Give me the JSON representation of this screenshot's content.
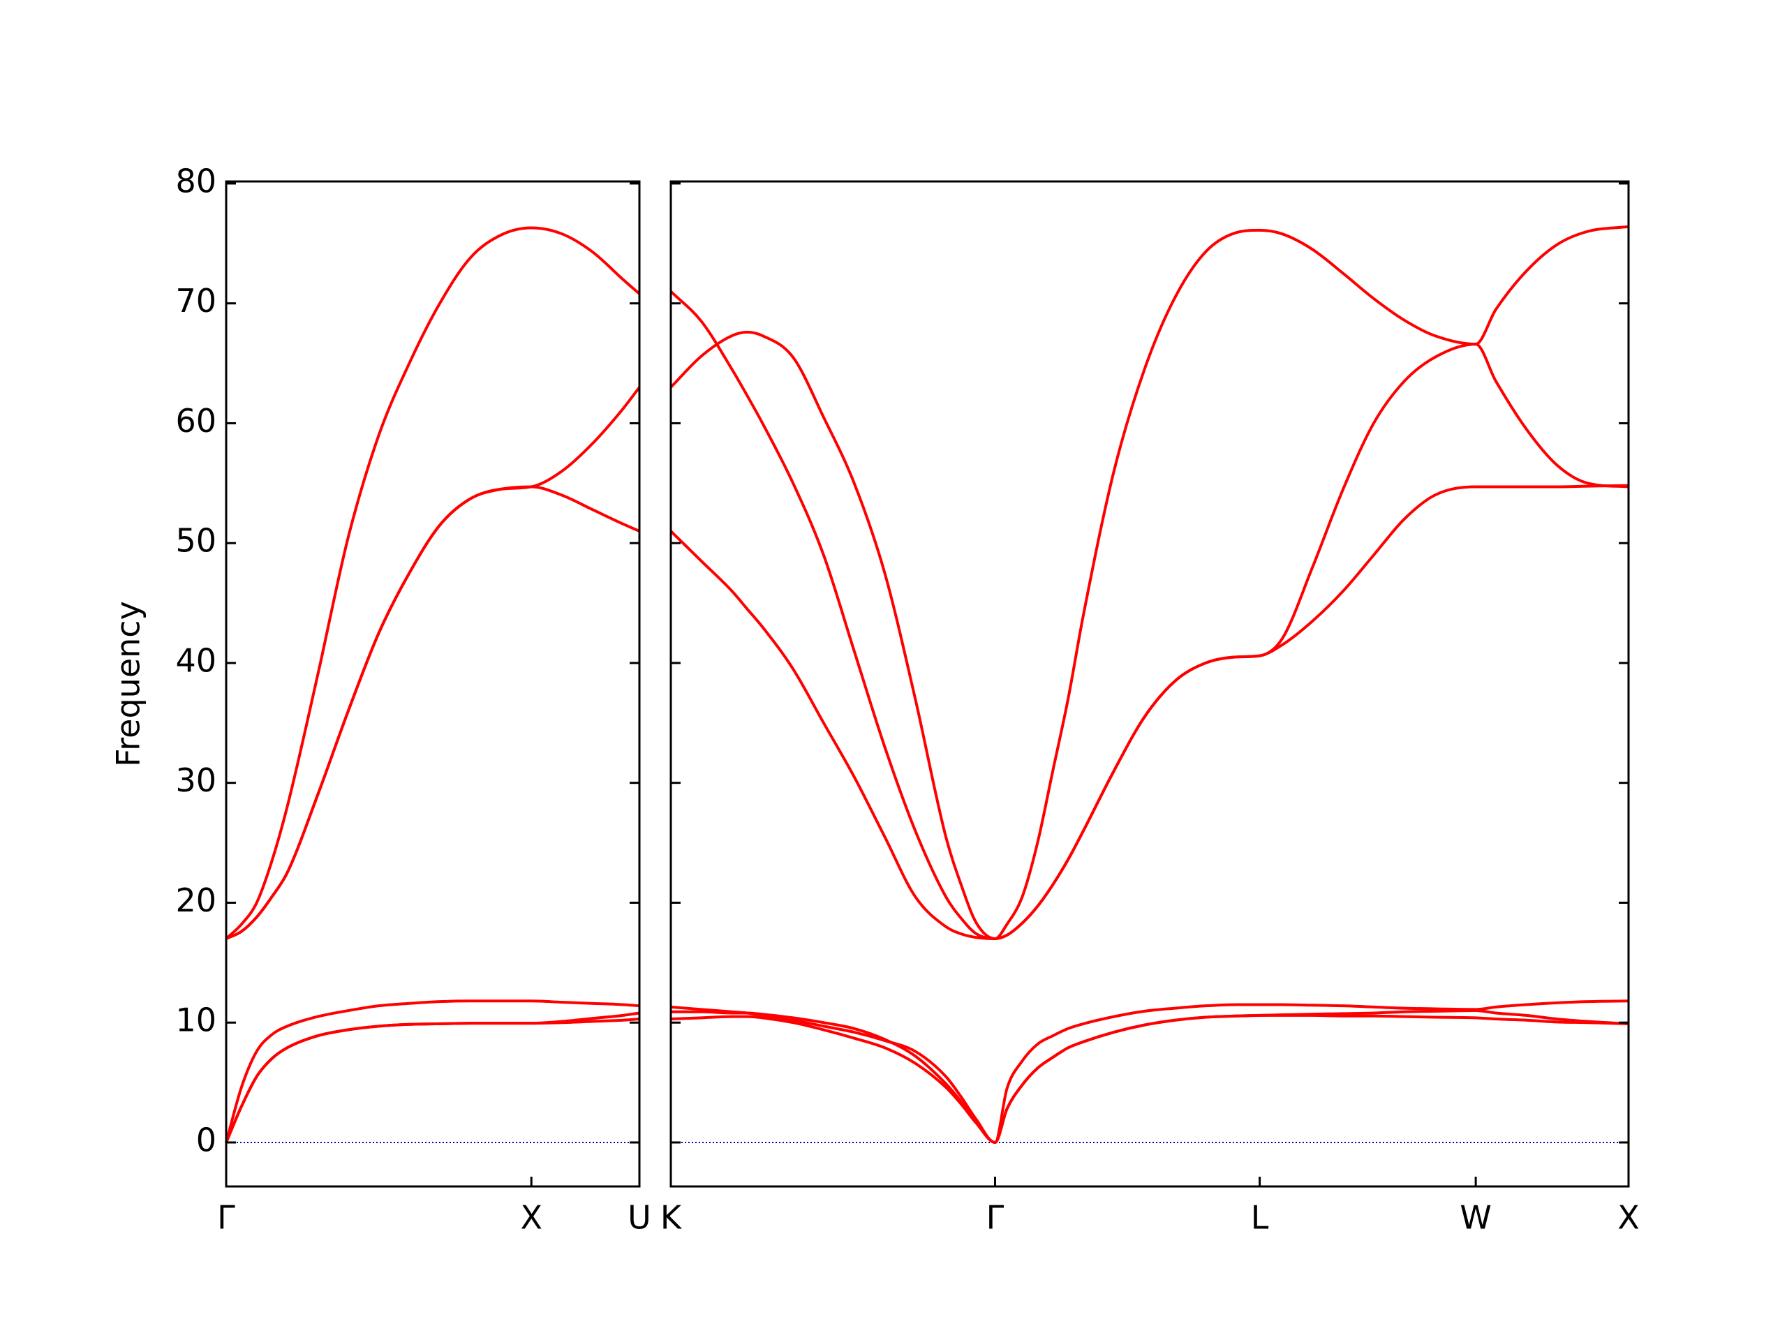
{
  "chart_data": [
    {
      "type": "line",
      "ylabel": "Frequency",
      "x": [
        0,
        0.05,
        0.1,
        0.15,
        0.2,
        0.3,
        0.4,
        0.5,
        0.6,
        0.7,
        0.8,
        0.9,
        1,
        1.1,
        1.2,
        1.3,
        1.354
      ],
      "series": [
        {
          "color": "#ff0000",
          "values": [
            17,
            18.2,
            20,
            23.5,
            28,
            39,
            50.5,
            59,
            65,
            70,
            73.8,
            75.7,
            76.3,
            75.8,
            74.3,
            72,
            70.8
          ]
        },
        {
          "color": "#ff0000",
          "values": [
            17,
            17.6,
            18.8,
            20.5,
            22.5,
            29,
            36,
            42.5,
            47.5,
            51.5,
            53.7,
            54.5,
            54.7,
            56,
            58.3,
            61.2,
            63
          ]
        },
        {
          "color": "#ff0000",
          "values": [
            17,
            17.6,
            18.8,
            20.5,
            22.5,
            29,
            36,
            42.5,
            47.5,
            51.5,
            53.7,
            54.5,
            54.7,
            54,
            52.8,
            51.6,
            51
          ]
        },
        {
          "color": "#ff0000",
          "values": [
            0,
            4.6,
            7.6,
            9,
            9.7,
            10.5,
            11,
            11.4,
            11.6,
            11.75,
            11.8,
            11.8,
            11.8,
            11.7,
            11.6,
            11.5,
            11.4
          ]
        },
        {
          "color": "#ff0000",
          "values": [
            0,
            3,
            5.5,
            7,
            7.9,
            8.9,
            9.4,
            9.7,
            9.85,
            9.9,
            9.95,
            9.95,
            9.95,
            10.1,
            10.35,
            10.6,
            10.8
          ]
        },
        {
          "color": "#ff0000",
          "values": [
            0,
            3,
            5.5,
            7,
            7.9,
            8.9,
            9.4,
            9.7,
            9.85,
            9.9,
            9.95,
            9.95,
            9.95,
            10,
            10.1,
            10.2,
            10.3
          ]
        }
      ],
      "xlim": [
        0,
        1.354
      ],
      "xticks": [
        {
          "value": 0,
          "label": "Γ"
        },
        {
          "value": 1,
          "label": "X"
        },
        {
          "value": 1.354,
          "label": "U"
        }
      ],
      "ylim": [
        -3.67,
        80.17
      ],
      "yticks": [
        0,
        10,
        20,
        30,
        40,
        50,
        60,
        70,
        80
      ],
      "hlines": [
        0
      ],
      "hline_color": "#0000aa"
    },
    {
      "type": "line",
      "x": [
        0,
        0.1,
        0.2,
        0.25,
        0.3,
        0.4,
        0.5,
        0.6,
        0.7,
        0.8,
        0.9,
        0.95,
        1.0,
        1.061,
        1.1,
        1.15,
        1.2,
        1.25,
        1.3,
        1.35,
        1.45,
        1.55,
        1.65,
        1.75,
        1.85,
        1.927,
        2.0,
        2.1,
        2.2,
        2.3,
        2.4,
        2.5,
        2.634,
        2.7,
        2.8,
        2.9,
        3.0,
        3.134
      ],
      "series": [
        {
          "color": "#ff0000",
          "values": [
            71,
            68.5,
            64.5,
            62.3,
            60,
            55,
            49,
            41,
            33,
            26,
            20.5,
            18.7,
            17.4,
            17,
            18.2,
            20.5,
            25,
            31,
            37,
            44,
            56,
            64.5,
            70.5,
            74.3,
            75.9,
            76.1,
            75.8,
            74.5,
            72.5,
            70.4,
            68.6,
            67.3,
            66.6,
            69.5,
            72.7,
            74.9,
            76,
            76.4
          ]
        },
        {
          "color": "#ff0000",
          "values": [
            63,
            65.6,
            67.3,
            67.6,
            67.3,
            65.5,
            60.5,
            55,
            47.5,
            37,
            25.5,
            21.5,
            18.3,
            17,
            17.3,
            18.3,
            19.7,
            21.5,
            23.6,
            26,
            31,
            35.5,
            38.5,
            40,
            40.5,
            40.6,
            42,
            48,
            54.5,
            60,
            63.5,
            65.5,
            66.6,
            63.5,
            59.5,
            56.5,
            55,
            54.7
          ]
        },
        {
          "color": "#ff0000",
          "values": [
            51,
            48.5,
            46,
            44.5,
            43,
            39.5,
            35,
            30.5,
            25.5,
            20.5,
            18,
            17.4,
            17.1,
            17,
            17.3,
            18.3,
            19.7,
            21.5,
            23.6,
            26,
            31,
            35.5,
            38.5,
            40,
            40.5,
            40.6,
            41.5,
            43.5,
            46,
            49,
            52,
            54,
            54.7,
            54.7,
            54.7,
            54.7,
            54.75,
            54.8
          ]
        },
        {
          "color": "#ff0000",
          "values": [
            11.3,
            11.1,
            10.9,
            10.8,
            10.6,
            10.2,
            9.7,
            9.2,
            8.5,
            7.6,
            5.5,
            3.8,
            1.9,
            0,
            4.5,
            6.8,
            8.2,
            8.9,
            9.5,
            9.9,
            10.5,
            10.95,
            11.2,
            11.4,
            11.5,
            11.5,
            11.5,
            11.45,
            11.4,
            11.3,
            11.2,
            11.15,
            11.1,
            11.3,
            11.5,
            11.65,
            11.75,
            11.8
          ]
        },
        {
          "color": "#ff0000",
          "values": [
            10.9,
            10.9,
            10.8,
            10.8,
            10.7,
            10.4,
            10,
            9.5,
            8.6,
            7.2,
            4.9,
            3.4,
            1.7,
            0,
            2.8,
            4.8,
            6.2,
            7.1,
            7.9,
            8.4,
            9.2,
            9.8,
            10.2,
            10.45,
            10.55,
            10.6,
            10.65,
            10.7,
            10.75,
            10.8,
            10.9,
            10.95,
            11,
            10.8,
            10.6,
            10.3,
            10.1,
            9.9
          ]
        },
        {
          "color": "#ff0000",
          "values": [
            10.3,
            10.4,
            10.5,
            10.5,
            10.4,
            10,
            9.4,
            8.7,
            7.9,
            6.6,
            4.6,
            3.2,
            1.6,
            0,
            2.8,
            4.8,
            6.2,
            7.1,
            7.9,
            8.4,
            9.2,
            9.8,
            10.2,
            10.45,
            10.55,
            10.6,
            10.6,
            10.6,
            10.55,
            10.55,
            10.5,
            10.45,
            10.4,
            10.3,
            10.2,
            10.05,
            10,
            9.9
          ]
        }
      ],
      "xlim": [
        0,
        3.134
      ],
      "xticks": [
        {
          "value": 0,
          "label": "K"
        },
        {
          "value": 1.061,
          "label": "Γ"
        },
        {
          "value": 1.927,
          "label": "L"
        },
        {
          "value": 2.634,
          "label": "W"
        },
        {
          "value": 3.134,
          "label": "X"
        }
      ],
      "ylim": [
        -3.67,
        80.17
      ],
      "hlines": [
        0
      ],
      "hline_color": "#0000aa"
    }
  ]
}
